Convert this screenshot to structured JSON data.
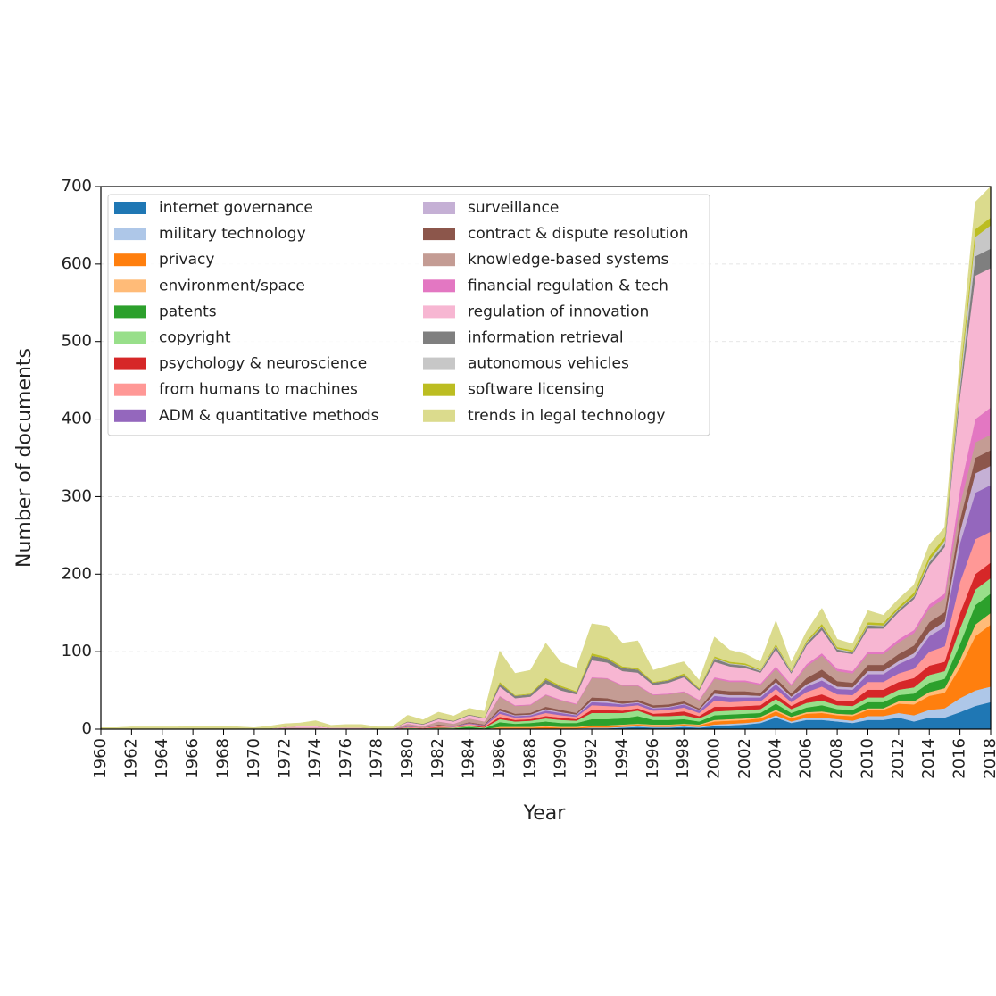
{
  "chart_data": {
    "type": "stacked_area",
    "xlabel": "Year",
    "ylabel": "Number of documents",
    "x": [
      1960,
      1961,
      1962,
      1963,
      1964,
      1965,
      1966,
      1967,
      1968,
      1969,
      1970,
      1971,
      1972,
      1973,
      1974,
      1975,
      1976,
      1977,
      1978,
      1979,
      1980,
      1981,
      1982,
      1983,
      1984,
      1985,
      1986,
      1987,
      1988,
      1989,
      1990,
      1991,
      1992,
      1993,
      1994,
      1995,
      1996,
      1997,
      1998,
      1999,
      2000,
      2001,
      2002,
      2003,
      2004,
      2005,
      2006,
      2007,
      2008,
      2009,
      2010,
      2011,
      2012,
      2013,
      2014,
      2015,
      2016,
      2017,
      2018
    ],
    "xlim": [
      1960,
      2018
    ],
    "xticks": [
      1960,
      1962,
      1964,
      1966,
      1968,
      1970,
      1972,
      1974,
      1976,
      1978,
      1980,
      1982,
      1984,
      1986,
      1988,
      1990,
      1992,
      1994,
      1996,
      1998,
      2000,
      2002,
      2004,
      2006,
      2008,
      2010,
      2012,
      2014,
      2016,
      2018
    ],
    "ylim": [
      0,
      700
    ],
    "yticks": [
      0,
      100,
      200,
      300,
      400,
      500,
      600,
      700
    ],
    "grid": true,
    "legend": "upper left",
    "series": [
      {
        "name": "internet governance",
        "color": "#1f77b4",
        "values": [
          0,
          0,
          0,
          0,
          0,
          0,
          0,
          0,
          0,
          0,
          0,
          0,
          0,
          0,
          0,
          0,
          0,
          0,
          0,
          0,
          0,
          0,
          0,
          0,
          0,
          0,
          0,
          0,
          0,
          0,
          0,
          0,
          1,
          1,
          2,
          3,
          2,
          2,
          3,
          2,
          4,
          5,
          6,
          8,
          15,
          8,
          12,
          12,
          10,
          8,
          12,
          12,
          15,
          10,
          15,
          15,
          22,
          30,
          35
        ]
      },
      {
        "name": "military technology",
        "color": "#aec7e8",
        "values": [
          0,
          0,
          0,
          0,
          0,
          0,
          0,
          0,
          0,
          0,
          0,
          0,
          0,
          0,
          0,
          0,
          0,
          0,
          0,
          0,
          0,
          0,
          0,
          0,
          0,
          0,
          1,
          1,
          1,
          1,
          1,
          1,
          1,
          1,
          1,
          1,
          1,
          1,
          1,
          1,
          2,
          2,
          2,
          2,
          3,
          2,
          3,
          3,
          3,
          3,
          5,
          5,
          6,
          8,
          10,
          12,
          18,
          20,
          20
        ]
      },
      {
        "name": "privacy",
        "color": "#ff7f0e",
        "values": [
          0,
          0,
          0,
          0,
          0,
          0,
          0,
          0,
          0,
          0,
          0,
          0,
          0,
          0,
          0,
          0,
          0,
          0,
          0,
          0,
          0,
          0,
          0,
          0,
          1,
          0,
          1,
          1,
          1,
          2,
          1,
          1,
          2,
          2,
          2,
          2,
          2,
          2,
          2,
          2,
          4,
          4,
          4,
          4,
          5,
          4,
          5,
          6,
          5,
          6,
          8,
          8,
          12,
          14,
          18,
          20,
          40,
          70,
          80
        ]
      },
      {
        "name": "environment/space",
        "color": "#ffbb78",
        "values": [
          0,
          0,
          0,
          0,
          0,
          0,
          0,
          0,
          0,
          0,
          0,
          0,
          0,
          0,
          0,
          0,
          0,
          0,
          0,
          0,
          0,
          0,
          0,
          0,
          0,
          0,
          1,
          1,
          1,
          1,
          1,
          1,
          1,
          1,
          1,
          1,
          1,
          1,
          1,
          1,
          2,
          2,
          2,
          2,
          2,
          2,
          2,
          2,
          2,
          2,
          2,
          2,
          3,
          4,
          5,
          6,
          10,
          15,
          15
        ]
      },
      {
        "name": "patents",
        "color": "#2ca02c",
        "values": [
          0,
          0,
          0,
          0,
          0,
          0,
          0,
          0,
          0,
          0,
          0,
          0,
          1,
          1,
          1,
          0,
          0,
          0,
          0,
          0,
          1,
          1,
          1,
          1,
          2,
          1,
          6,
          4,
          5,
          6,
          5,
          5,
          8,
          8,
          8,
          10,
          6,
          6,
          6,
          4,
          6,
          6,
          6,
          5,
          8,
          5,
          6,
          8,
          6,
          6,
          8,
          8,
          8,
          10,
          12,
          12,
          20,
          25,
          25
        ]
      },
      {
        "name": "copyright",
        "color": "#98df8a",
        "values": [
          0,
          0,
          0,
          0,
          0,
          0,
          0,
          0,
          0,
          0,
          0,
          0,
          0,
          0,
          0,
          0,
          0,
          0,
          0,
          0,
          1,
          0,
          1,
          1,
          1,
          1,
          4,
          3,
          3,
          4,
          4,
          3,
          8,
          8,
          7,
          7,
          5,
          5,
          5,
          4,
          5,
          5,
          5,
          5,
          6,
          5,
          6,
          6,
          5,
          5,
          6,
          6,
          7,
          8,
          10,
          10,
          20,
          20,
          20
        ]
      },
      {
        "name": "psychology & neuroscience",
        "color": "#d62728",
        "values": [
          0,
          0,
          0,
          0,
          0,
          0,
          0,
          0,
          0,
          0,
          0,
          0,
          0,
          0,
          0,
          0,
          0,
          0,
          0,
          0,
          0,
          0,
          1,
          0,
          1,
          1,
          3,
          2,
          2,
          3,
          3,
          2,
          4,
          4,
          3,
          3,
          3,
          4,
          5,
          3,
          6,
          5,
          5,
          5,
          6,
          4,
          6,
          8,
          6,
          6,
          10,
          10,
          10,
          12,
          12,
          12,
          20,
          20,
          20
        ]
      },
      {
        "name": "from humans to machines",
        "color": "#ff9896",
        "values": [
          0,
          0,
          0,
          0,
          0,
          0,
          0,
          0,
          0,
          0,
          0,
          0,
          0,
          0,
          0,
          0,
          0,
          0,
          0,
          0,
          1,
          1,
          1,
          1,
          2,
          1,
          4,
          3,
          3,
          4,
          3,
          3,
          6,
          5,
          5,
          4,
          4,
          4,
          5,
          4,
          8,
          6,
          6,
          5,
          7,
          5,
          8,
          10,
          8,
          8,
          10,
          10,
          11,
          12,
          18,
          20,
          40,
          45,
          40
        ]
      },
      {
        "name": "ADM & quantitative methods",
        "color": "#9467bd",
        "values": [
          0,
          0,
          0,
          0,
          0,
          0,
          0,
          0,
          0,
          0,
          0,
          0,
          0,
          0,
          0,
          0,
          0,
          0,
          0,
          0,
          1,
          0,
          1,
          1,
          1,
          1,
          3,
          2,
          2,
          3,
          3,
          2,
          4,
          4,
          3,
          3,
          3,
          3,
          4,
          3,
          6,
          6,
          5,
          5,
          6,
          5,
          7,
          8,
          7,
          7,
          10,
          10,
          12,
          15,
          20,
          25,
          50,
          60,
          60
        ]
      },
      {
        "name": "surveillance",
        "color": "#c5b0d5",
        "values": [
          0,
          0,
          0,
          0,
          0,
          0,
          0,
          0,
          0,
          0,
          0,
          0,
          0,
          0,
          0,
          0,
          0,
          0,
          0,
          0,
          0,
          0,
          0,
          0,
          0,
          0,
          1,
          1,
          1,
          2,
          1,
          1,
          2,
          2,
          1,
          1,
          1,
          1,
          1,
          1,
          3,
          3,
          3,
          2,
          3,
          2,
          3,
          4,
          3,
          3,
          4,
          4,
          4,
          5,
          6,
          7,
          15,
          25,
          25
        ]
      },
      {
        "name": "contract & dispute resolution",
        "color": "#8c564b",
        "values": [
          0,
          0,
          0,
          0,
          0,
          0,
          0,
          0,
          0,
          0,
          0,
          0,
          0,
          0,
          0,
          0,
          0,
          0,
          0,
          0,
          0,
          0,
          1,
          0,
          1,
          1,
          3,
          2,
          2,
          3,
          3,
          2,
          4,
          4,
          3,
          3,
          3,
          3,
          3,
          2,
          5,
          5,
          5,
          4,
          5,
          4,
          8,
          10,
          7,
          6,
          8,
          8,
          9,
          10,
          12,
          12,
          15,
          20,
          20
        ]
      },
      {
        "name": "knowledge-based systems",
        "color": "#c49c94",
        "values": [
          0,
          0,
          0,
          0,
          0,
          0,
          0,
          0,
          0,
          0,
          0,
          0,
          1,
          1,
          1,
          1,
          1,
          1,
          0,
          0,
          3,
          2,
          4,
          3,
          5,
          4,
          15,
          10,
          10,
          15,
          12,
          11,
          25,
          25,
          20,
          18,
          13,
          13,
          12,
          10,
          14,
          12,
          12,
          10,
          12,
          10,
          15,
          18,
          13,
          12,
          14,
          14,
          15,
          16,
          18,
          18,
          20,
          20,
          20
        ]
      },
      {
        "name": "financial regulation & tech",
        "color": "#e377c2",
        "values": [
          0,
          0,
          0,
          0,
          0,
          0,
          0,
          0,
          0,
          0,
          0,
          0,
          0,
          0,
          0,
          0,
          0,
          0,
          0,
          0,
          0,
          0,
          0,
          0,
          0,
          0,
          1,
          1,
          1,
          1,
          1,
          1,
          1,
          1,
          1,
          1,
          1,
          1,
          1,
          1,
          2,
          2,
          2,
          2,
          3,
          2,
          3,
          3,
          3,
          3,
          3,
          3,
          4,
          4,
          5,
          6,
          20,
          30,
          35
        ]
      },
      {
        "name": "regulation of innovation",
        "color": "#f7b6d2",
        "values": [
          0,
          0,
          0,
          0,
          0,
          0,
          1,
          1,
          1,
          1,
          0,
          1,
          1,
          2,
          2,
          1,
          1,
          1,
          1,
          1,
          2,
          2,
          3,
          3,
          4,
          4,
          12,
          9,
          10,
          14,
          12,
          12,
          22,
          20,
          18,
          16,
          12,
          14,
          18,
          12,
          20,
          18,
          16,
          14,
          22,
          14,
          24,
          30,
          22,
          22,
          30,
          30,
          35,
          40,
          50,
          60,
          120,
          185,
          180
        ]
      },
      {
        "name": "information retrieval",
        "color": "#7f7f7f",
        "values": [
          0,
          0,
          0,
          0,
          0,
          0,
          0,
          0,
          0,
          0,
          0,
          0,
          0,
          0,
          0,
          0,
          0,
          0,
          0,
          0,
          1,
          1,
          1,
          1,
          1,
          1,
          4,
          3,
          3,
          5,
          4,
          3,
          6,
          5,
          4,
          4,
          3,
          3,
          3,
          2,
          4,
          3,
          3,
          2,
          4,
          2,
          3,
          4,
          3,
          2,
          4,
          3,
          3,
          3,
          4,
          4,
          10,
          25,
          25
        ]
      },
      {
        "name": "autonomous vehicles",
        "color": "#c7c7c7",
        "values": [
          0,
          0,
          0,
          0,
          0,
          0,
          0,
          0,
          0,
          0,
          0,
          0,
          0,
          0,
          0,
          0,
          0,
          0,
          0,
          0,
          0,
          0,
          0,
          0,
          0,
          0,
          0,
          0,
          0,
          0,
          0,
          0,
          0,
          0,
          0,
          0,
          0,
          0,
          0,
          0,
          1,
          1,
          1,
          1,
          1,
          1,
          1,
          1,
          1,
          1,
          1,
          1,
          1,
          1,
          3,
          4,
          10,
          25,
          30
        ]
      },
      {
        "name": "software licensing",
        "color": "#bcbd22",
        "values": [
          0,
          0,
          0,
          0,
          0,
          0,
          0,
          0,
          0,
          0,
          0,
          0,
          0,
          0,
          0,
          0,
          0,
          0,
          0,
          0,
          0,
          0,
          0,
          0,
          0,
          0,
          2,
          1,
          1,
          2,
          2,
          1,
          3,
          2,
          2,
          2,
          1,
          1,
          2,
          1,
          2,
          2,
          2,
          1,
          2,
          1,
          2,
          3,
          2,
          2,
          3,
          3,
          3,
          4,
          5,
          5,
          8,
          10,
          10
        ]
      },
      {
        "name": "trends in legal technology",
        "color": "#dbdb8d",
        "values": [
          2,
          2,
          3,
          3,
          3,
          3,
          3,
          3,
          3,
          2,
          2,
          3,
          4,
          4,
          7,
          3,
          4,
          4,
          2,
          2,
          8,
          5,
          8,
          6,
          8,
          8,
          40,
          28,
          30,
          45,
          30,
          30,
          38,
          40,
          30,
          35,
          15,
          18,
          15,
          10,
          25,
          15,
          12,
          10,
          30,
          10,
          12,
          20,
          10,
          8,
          15,
          10,
          10,
          10,
          15,
          12,
          20,
          35,
          40
        ]
      }
    ]
  }
}
